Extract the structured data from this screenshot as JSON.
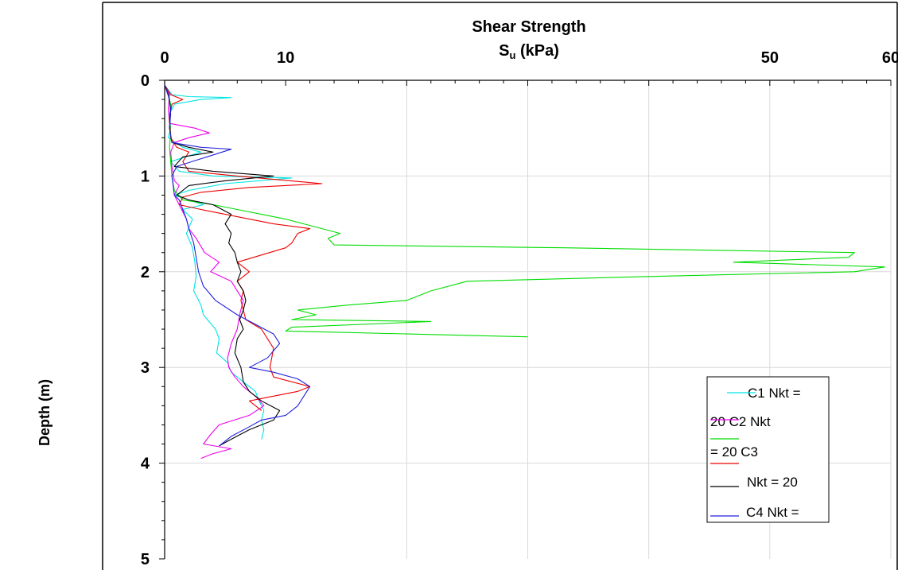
{
  "chart_data": {
    "type": "line",
    "title": "Shear Strength",
    "subtitle_main": "S",
    "subtitle_sub": "u",
    "subtitle_rest": " (kPa)",
    "ylabel": "Depth (m)",
    "x_axis_position": "top",
    "y_axis_inverted": true,
    "xlim": [
      0,
      60
    ],
    "ylim": [
      0,
      5
    ],
    "x_tick_labels": [
      {
        "value": 0,
        "label": "0"
      },
      {
        "value": 10,
        "label": "10"
      },
      {
        "value": 50,
        "label": "50"
      },
      {
        "value": 60,
        "label": "60"
      }
    ],
    "y_tick_labels": [
      {
        "value": 0,
        "label": "0"
      },
      {
        "value": 1,
        "label": "1"
      },
      {
        "value": 2,
        "label": "2"
      },
      {
        "value": 3,
        "label": "3"
      },
      {
        "value": 4,
        "label": "4"
      },
      {
        "value": 5,
        "label": "5"
      }
    ],
    "gridlines_x": [
      20,
      30,
      40,
      50,
      60
    ],
    "gridlines_y": [
      1,
      2,
      3,
      4
    ],
    "grid": true,
    "legend_position": "bottom-right",
    "legend_lines": [
      "C1  Nkt  =",
      "20  C2  Nkt",
      "=   20   C3",
      "Nkt   =   20",
      "C4   Nkt   ="
    ],
    "series": [
      {
        "color": "#00e5e5",
        "points": [
          [
            0,
            0.05
          ],
          [
            0.3,
            0.1
          ],
          [
            0.6,
            0.15
          ],
          [
            2,
            0.17
          ],
          [
            5.5,
            0.18
          ],
          [
            3,
            0.2
          ],
          [
            0.8,
            0.25
          ],
          [
            0.4,
            0.35
          ],
          [
            0.5,
            0.5
          ],
          [
            0.3,
            0.6
          ],
          [
            1.5,
            0.7
          ],
          [
            3,
            0.75
          ],
          [
            0.5,
            0.85
          ],
          [
            1.2,
            0.95
          ],
          [
            4,
            1.0
          ],
          [
            10.5,
            1.02
          ],
          [
            5,
            1.08
          ],
          [
            2,
            1.15
          ],
          [
            0.8,
            1.2
          ],
          [
            2,
            1.25
          ],
          [
            3.2,
            1.3
          ],
          [
            1.5,
            1.35
          ],
          [
            2.3,
            1.45
          ],
          [
            1.8,
            1.6
          ],
          [
            2.3,
            1.75
          ],
          [
            2.5,
            1.9
          ],
          [
            2.6,
            2.05
          ],
          [
            2.4,
            2.2
          ],
          [
            3.0,
            2.35
          ],
          [
            3.2,
            2.45
          ],
          [
            4.2,
            2.6
          ],
          [
            4.5,
            2.7
          ],
          [
            4.3,
            2.85
          ],
          [
            5.2,
            2.95
          ],
          [
            5.5,
            3.05
          ],
          [
            6.5,
            3.15
          ],
          [
            7.5,
            3.25
          ],
          [
            7.8,
            3.35
          ],
          [
            8.2,
            3.45
          ],
          [
            8.0,
            3.55
          ],
          [
            8.2,
            3.65
          ],
          [
            8.0,
            3.75
          ]
        ]
      },
      {
        "color": "#ee00ee",
        "points": [
          [
            0,
            0.05
          ],
          [
            0.4,
            0.15
          ],
          [
            0.3,
            0.3
          ],
          [
            0.4,
            0.45
          ],
          [
            2.5,
            0.5
          ],
          [
            3.7,
            0.55
          ],
          [
            2,
            0.6
          ],
          [
            0.8,
            0.65
          ],
          [
            0.5,
            0.75
          ],
          [
            0.6,
            0.9
          ],
          [
            0.8,
            1.05
          ],
          [
            1.2,
            1.1
          ],
          [
            0.8,
            1.2
          ],
          [
            1.2,
            1.3
          ],
          [
            1.8,
            1.45
          ],
          [
            2.0,
            1.55
          ],
          [
            2.6,
            1.65
          ],
          [
            3.3,
            1.8
          ],
          [
            4.5,
            1.9
          ],
          [
            3.8,
            2.0
          ],
          [
            5.5,
            2.1
          ],
          [
            6.0,
            2.2
          ],
          [
            6.5,
            2.3
          ],
          [
            6.2,
            2.45
          ],
          [
            6.0,
            2.6
          ],
          [
            5.5,
            2.75
          ],
          [
            5.2,
            2.9
          ],
          [
            5.3,
            3.0
          ],
          [
            5.8,
            3.1
          ],
          [
            6.5,
            3.2
          ],
          [
            7.5,
            3.3
          ],
          [
            8.2,
            3.4
          ],
          [
            7.0,
            3.5
          ],
          [
            4.5,
            3.6
          ],
          [
            3.8,
            3.7
          ],
          [
            3.2,
            3.8
          ],
          [
            5.5,
            3.85
          ],
          [
            4,
            3.9
          ],
          [
            3.0,
            3.95
          ]
        ]
      },
      {
        "color": "#00dd00",
        "points": [
          [
            0,
            0.05
          ],
          [
            0.3,
            0.15
          ],
          [
            0.5,
            0.25
          ],
          [
            0.4,
            0.4
          ],
          [
            0.5,
            0.55
          ],
          [
            0.4,
            0.7
          ],
          [
            0.5,
            0.85
          ],
          [
            0.6,
            1.0
          ],
          [
            0.8,
            1.15
          ],
          [
            1.5,
            1.25
          ],
          [
            4,
            1.3
          ],
          [
            6,
            1.35
          ],
          [
            8,
            1.4
          ],
          [
            10,
            1.45
          ],
          [
            11.5,
            1.5
          ],
          [
            13,
            1.55
          ],
          [
            14.5,
            1.6
          ],
          [
            13.5,
            1.65
          ],
          [
            14,
            1.72
          ],
          [
            33,
            1.75
          ],
          [
            57,
            1.8
          ],
          [
            56.5,
            1.85
          ],
          [
            47,
            1.9
          ],
          [
            59.5,
            1.95
          ],
          [
            57,
            2.0
          ],
          [
            40,
            2.05
          ],
          [
            25,
            2.1
          ],
          [
            22,
            2.2
          ],
          [
            20,
            2.3
          ],
          [
            15,
            2.35
          ],
          [
            11,
            2.4
          ],
          [
            12.5,
            2.45
          ],
          [
            10.5,
            2.5
          ],
          [
            22,
            2.52
          ],
          [
            10.5,
            2.58
          ],
          [
            10,
            2.62
          ],
          [
            30,
            2.68
          ]
        ]
      },
      {
        "color": "#ee0000",
        "points": [
          [
            0,
            0.05
          ],
          [
            0.5,
            0.15
          ],
          [
            1.5,
            0.2
          ],
          [
            0.6,
            0.25
          ],
          [
            0.4,
            0.4
          ],
          [
            0.5,
            0.6
          ],
          [
            1,
            0.7
          ],
          [
            2,
            0.75
          ],
          [
            1.5,
            0.85
          ],
          [
            2,
            0.95
          ],
          [
            6,
            1.0
          ],
          [
            13,
            1.08
          ],
          [
            7,
            1.12
          ],
          [
            3,
            1.17
          ],
          [
            1.5,
            1.22
          ],
          [
            1.2,
            1.3
          ],
          [
            3,
            1.35
          ],
          [
            5,
            1.4
          ],
          [
            7,
            1.45
          ],
          [
            9,
            1.5
          ],
          [
            12,
            1.55
          ],
          [
            11,
            1.6
          ],
          [
            10.5,
            1.7
          ],
          [
            10,
            1.75
          ],
          [
            6,
            1.9
          ],
          [
            7,
            2.0
          ],
          [
            6,
            2.1
          ],
          [
            6.5,
            2.2
          ],
          [
            6.3,
            2.3
          ],
          [
            6.5,
            2.4
          ],
          [
            6.7,
            2.5
          ],
          [
            8,
            2.6
          ],
          [
            8.5,
            2.7
          ],
          [
            9,
            2.8
          ],
          [
            8.7,
            3.0
          ],
          [
            9,
            3.1
          ],
          [
            12,
            3.2
          ],
          [
            11,
            3.25
          ],
          [
            9,
            3.3
          ],
          [
            7,
            3.35
          ],
          [
            8,
            3.45
          ]
        ]
      },
      {
        "color": "#000000",
        "points": [
          [
            0,
            0.05
          ],
          [
            0.3,
            0.15
          ],
          [
            0.5,
            0.3
          ],
          [
            0.4,
            0.5
          ],
          [
            0.6,
            0.65
          ],
          [
            2,
            0.7
          ],
          [
            4,
            0.75
          ],
          [
            1.5,
            0.8
          ],
          [
            0.8,
            0.9
          ],
          [
            4,
            0.95
          ],
          [
            9,
            1.0
          ],
          [
            5,
            1.05
          ],
          [
            2,
            1.1
          ],
          [
            1,
            1.2
          ],
          [
            2,
            1.25
          ],
          [
            4,
            1.3
          ],
          [
            5.5,
            1.4
          ],
          [
            5,
            1.5
          ],
          [
            5.5,
            1.6
          ],
          [
            5.3,
            1.7
          ],
          [
            5.8,
            1.8
          ],
          [
            6.0,
            1.9
          ],
          [
            6.3,
            2.0
          ],
          [
            6.0,
            2.1
          ],
          [
            6.5,
            2.2
          ],
          [
            6.7,
            2.3
          ],
          [
            6.5,
            2.4
          ],
          [
            6.2,
            2.5
          ],
          [
            6.5,
            2.6
          ],
          [
            6.0,
            2.7
          ],
          [
            5.8,
            2.85
          ],
          [
            6.3,
            3.0
          ],
          [
            6.5,
            3.15
          ],
          [
            7,
            3.25
          ],
          [
            8,
            3.35
          ],
          [
            9.5,
            3.45
          ],
          [
            9,
            3.55
          ],
          [
            7,
            3.65
          ],
          [
            5.5,
            3.75
          ],
          [
            4.5,
            3.82
          ]
        ]
      },
      {
        "color": "#2020dd",
        "points": [
          [
            0,
            0.05
          ],
          [
            0.4,
            0.2
          ],
          [
            0.5,
            0.35
          ],
          [
            0.4,
            0.5
          ],
          [
            0.6,
            0.65
          ],
          [
            3,
            0.7
          ],
          [
            5.5,
            0.72
          ],
          [
            3.5,
            0.8
          ],
          [
            1,
            0.9
          ],
          [
            0.6,
            1.0
          ],
          [
            0.7,
            1.1
          ],
          [
            0.8,
            1.2
          ],
          [
            1.2,
            1.25
          ],
          [
            1.5,
            1.35
          ],
          [
            1.8,
            1.45
          ],
          [
            2.0,
            1.55
          ],
          [
            2.4,
            1.7
          ],
          [
            2.6,
            1.85
          ],
          [
            2.8,
            2.0
          ],
          [
            3.2,
            2.15
          ],
          [
            4.2,
            2.3
          ],
          [
            6.0,
            2.45
          ],
          [
            7.5,
            2.55
          ],
          [
            9,
            2.65
          ],
          [
            9.5,
            2.75
          ],
          [
            8.5,
            2.9
          ],
          [
            7,
            3.0
          ],
          [
            9,
            3.05
          ],
          [
            11,
            3.12
          ],
          [
            12,
            3.2
          ],
          [
            11.5,
            3.3
          ],
          [
            11,
            3.4
          ],
          [
            10,
            3.5
          ],
          [
            8,
            3.55
          ],
          [
            7,
            3.62
          ],
          [
            5.5,
            3.72
          ],
          [
            4.5,
            3.82
          ]
        ]
      }
    ]
  }
}
